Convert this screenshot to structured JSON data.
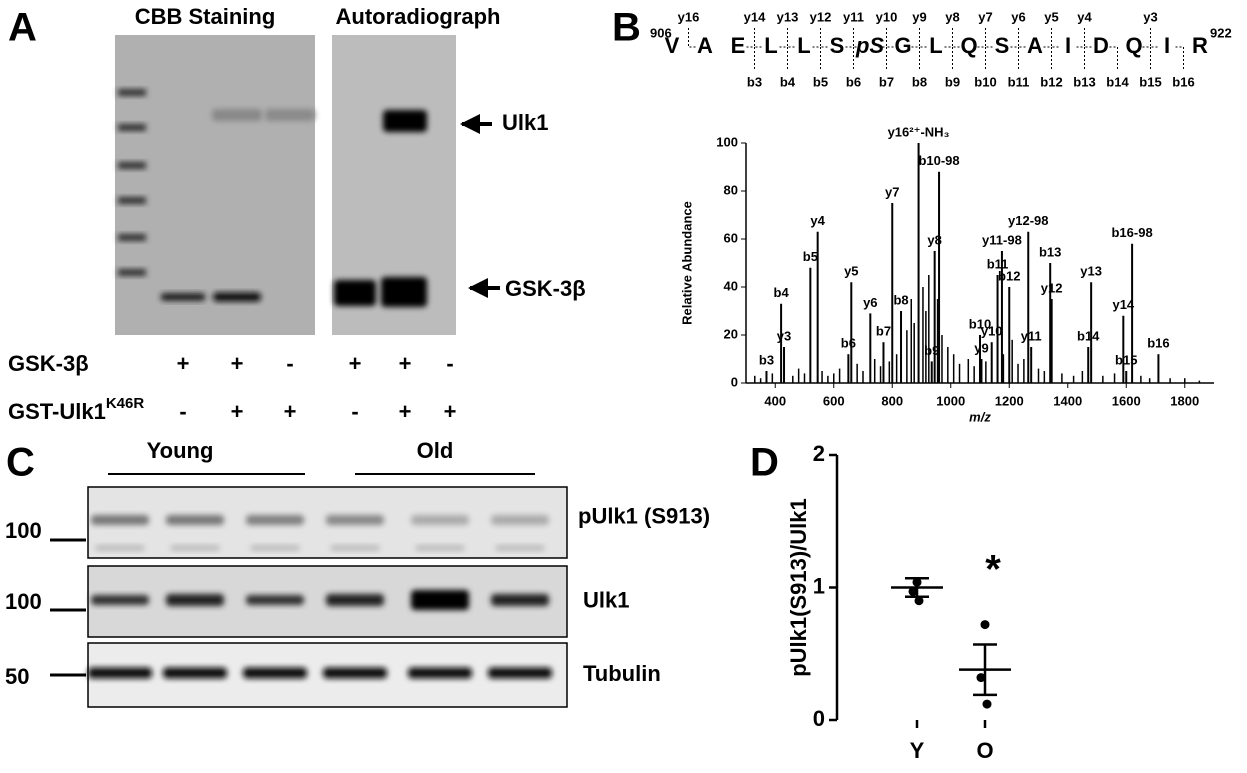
{
  "panel_labels": [
    "A",
    "B",
    "C",
    "D"
  ],
  "panel_a": {
    "titles": [
      "CBB Staining",
      "Autoradiograph"
    ],
    "band_labels": [
      "Ulk1",
      "GSK-3β"
    ],
    "rows": [
      {
        "label": "GSK-3β",
        "signs": [
          "+",
          "+",
          "-",
          "+",
          "+",
          "-"
        ]
      },
      {
        "label": "GST-Ulk1",
        "superscript": "K46R",
        "signs": [
          "-",
          "+",
          "+",
          "-",
          "+",
          "+"
        ]
      }
    ]
  },
  "panel_b_sequence": {
    "start": "906",
    "end": "922",
    "residues": [
      "V",
      "A",
      "E",
      "L",
      "L",
      "S",
      "pS",
      "G",
      "L",
      "Q",
      "S",
      "A",
      "I",
      "D",
      "Q",
      "I",
      "R"
    ],
    "y_ions": [
      "y16",
      "y14",
      "y13",
      "y12",
      "y11",
      "y10",
      "y9",
      "y8",
      "y7",
      "y6",
      "y5",
      "y4",
      "y3"
    ],
    "b_ions": [
      "b3",
      "b4",
      "b5",
      "b6",
      "b7",
      "b8",
      "b9",
      "b10",
      "b11",
      "b12",
      "b13",
      "b14",
      "b15",
      "b16"
    ]
  },
  "panel_c": {
    "groups": [
      "Young",
      "Old"
    ],
    "markers": [
      "100",
      "100",
      "50"
    ],
    "blots": [
      "pUlk1 (S913)",
      "Ulk1",
      "Tubulin"
    ]
  },
  "chart_data": [
    {
      "type": "spectrum",
      "xlabel": "m/z",
      "ylabel": "Relative Abundance",
      "xlim": [
        300,
        1900
      ],
      "xticks": [
        400,
        600,
        800,
        1000,
        1200,
        1400,
        1600,
        1800
      ],
      "ylim": [
        0,
        100
      ],
      "yticks": [
        0,
        20,
        40,
        60,
        80,
        100
      ],
      "color": "#000000",
      "annotated": [
        {
          "label": "b3",
          "mz": 370,
          "intensity": 5,
          "color": "#000000"
        },
        {
          "label": "y3",
          "mz": 430,
          "intensity": 15,
          "color": "#000000"
        },
        {
          "label": "b4",
          "mz": 420,
          "intensity": 33,
          "color": "#000000"
        },
        {
          "label": "b5",
          "mz": 520,
          "intensity": 48,
          "color": "#000000"
        },
        {
          "label": "y4",
          "mz": 545,
          "intensity": 63,
          "color": "#000000"
        },
        {
          "label": "b6",
          "mz": 650,
          "intensity": 12,
          "color": "#000000"
        },
        {
          "label": "y5",
          "mz": 660,
          "intensity": 42,
          "color": "#000000"
        },
        {
          "label": "y6",
          "mz": 725,
          "intensity": 29,
          "color": "#000000"
        },
        {
          "label": "b7",
          "mz": 770,
          "intensity": 17,
          "color": "#e02020"
        },
        {
          "label": "y7",
          "mz": 800,
          "intensity": 75,
          "color": "#000000"
        },
        {
          "label": "b8",
          "mz": 830,
          "intensity": 30,
          "color": "#000000"
        },
        {
          "label": "y16²⁺-NH₃",
          "mz": 890,
          "intensity": 100,
          "color": "#000000"
        },
        {
          "label": "b9",
          "mz": 935,
          "intensity": 9,
          "color": "#000000"
        },
        {
          "label": "y8",
          "mz": 945,
          "intensity": 55,
          "color": "#000000"
        },
        {
          "label": "b10-98",
          "mz": 960,
          "intensity": 88,
          "color": "#000000"
        },
        {
          "label": "b10",
          "mz": 1100,
          "intensity": 20,
          "color": "#000000"
        },
        {
          "label": "y9",
          "mz": 1105,
          "intensity": 10,
          "color": "#000000"
        },
        {
          "label": "y10",
          "mz": 1140,
          "intensity": 17,
          "color": "#000000"
        },
        {
          "label": "b11",
          "mz": 1160,
          "intensity": 45,
          "color": "#000000"
        },
        {
          "label": "y11-98",
          "mz": 1175,
          "intensity": 55,
          "color": "#e02020"
        },
        {
          "label": "b12",
          "mz": 1200,
          "intensity": 40,
          "color": "#000000"
        },
        {
          "label": "y12-98",
          "mz": 1265,
          "intensity": 63,
          "color": "#000000"
        },
        {
          "label": "y11",
          "mz": 1275,
          "intensity": 15,
          "color": "#000000"
        },
        {
          "label": "b13",
          "mz": 1340,
          "intensity": 50,
          "color": "#000000"
        },
        {
          "label": "y12",
          "mz": 1345,
          "intensity": 35,
          "color": "#000000"
        },
        {
          "label": "b14",
          "mz": 1470,
          "intensity": 15,
          "color": "#000000"
        },
        {
          "label": "y13",
          "mz": 1480,
          "intensity": 42,
          "color": "#000000"
        },
        {
          "label": "y14",
          "mz": 1590,
          "intensity": 28,
          "color": "#000000"
        },
        {
          "label": "b15",
          "mz": 1600,
          "intensity": 5,
          "color": "#000000"
        },
        {
          "label": "b16-98",
          "mz": 1620,
          "intensity": 58,
          "color": "#000000"
        },
        {
          "label": "b16",
          "mz": 1710,
          "intensity": 12,
          "color": "#000000"
        }
      ],
      "mz": [
        330,
        350,
        390,
        460,
        480,
        500,
        560,
        580,
        600,
        620,
        680,
        700,
        740,
        760,
        790,
        815,
        850,
        865,
        875,
        905,
        915,
        925,
        955,
        970,
        990,
        1010,
        1030,
        1060,
        1080,
        1120,
        1180,
        1210,
        1230,
        1250,
        1300,
        1320,
        1380,
        1420,
        1450,
        1520,
        1560,
        1650,
        1680,
        1750,
        1800,
        1850
      ],
      "intensity": [
        3,
        2,
        4,
        3,
        6,
        4,
        5,
        3,
        4,
        6,
        8,
        5,
        10,
        7,
        9,
        12,
        22,
        35,
        25,
        40,
        30,
        45,
        35,
        20,
        15,
        12,
        8,
        10,
        7,
        9,
        12,
        18,
        8,
        10,
        6,
        5,
        4,
        3,
        5,
        3,
        4,
        3,
        2,
        2,
        2,
        1
      ]
    },
    {
      "type": "dot",
      "ylabel": "pUlk1(S913)/Ulk1",
      "categories": [
        "Y",
        "O"
      ],
      "values": [
        [
          1.04,
          0.97,
          0.9
        ],
        [
          0.72,
          0.32,
          0.12
        ]
      ],
      "mean": [
        1.0,
        0.38
      ],
      "sem": [
        0.07,
        0.19
      ],
      "ylim": [
        0,
        2
      ],
      "yticks": [
        0,
        1,
        2
      ],
      "annotation": "*",
      "annotation_color": "#e02020",
      "color": "#000000"
    }
  ]
}
